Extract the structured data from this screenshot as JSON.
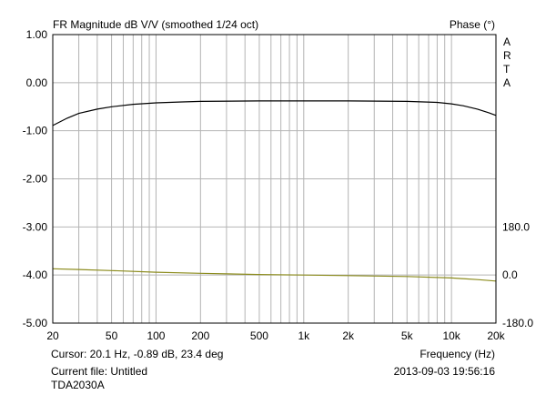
{
  "chart_data": {
    "type": "line",
    "title": "FR Magnitude dB V/V (smoothed 1/24 oct)",
    "right_title": "Phase (°)",
    "brand": "ARTA",
    "xlabel": "Frequency (Hz)",
    "x_scale": "log",
    "xlim": [
      20,
      20000
    ],
    "x_ticks": [
      {
        "value": 20,
        "label": "20"
      },
      {
        "value": 50,
        "label": "50"
      },
      {
        "value": 100,
        "label": "100"
      },
      {
        "value": 200,
        "label": "200"
      },
      {
        "value": 500,
        "label": "500"
      },
      {
        "value": 1000,
        "label": "1k"
      },
      {
        "value": 2000,
        "label": "2k"
      },
      {
        "value": 5000,
        "label": "5k"
      },
      {
        "value": 10000,
        "label": "10k"
      },
      {
        "value": 20000,
        "label": "20k"
      }
    ],
    "ylim": [
      -5,
      1
    ],
    "y_ticks": [
      {
        "value": 1,
        "label": "1.00"
      },
      {
        "value": 0,
        "label": "0.00"
      },
      {
        "value": -1,
        "label": "-1.00"
      },
      {
        "value": -2,
        "label": "-2.00"
      },
      {
        "value": -3,
        "label": "-3.00"
      },
      {
        "value": -4,
        "label": "-4.00"
      },
      {
        "value": -5,
        "label": "-5.00"
      }
    ],
    "y2lim": [
      -180,
      180
    ],
    "y2_ticks": [
      {
        "value": 180,
        "label": "180.0"
      },
      {
        "value": 0,
        "label": "0.0"
      },
      {
        "value": -180,
        "label": "-180.0"
      }
    ],
    "grid": true,
    "colors": {
      "magnitude": "#000000",
      "phase": "#8c8c1e",
      "grid": "#b4b4b4",
      "border": "#000000"
    },
    "series": [
      {
        "axis": "left",
        "x": [
          20,
          25,
          30,
          40,
          50,
          70,
          100,
          150,
          200,
          500,
          1000,
          2000,
          5000,
          8000,
          10000,
          12000,
          15000,
          18000,
          20000
        ],
        "y": [
          -0.89,
          -0.74,
          -0.64,
          -0.55,
          -0.5,
          -0.45,
          -0.42,
          -0.4,
          -0.39,
          -0.38,
          -0.38,
          -0.38,
          -0.39,
          -0.41,
          -0.44,
          -0.48,
          -0.55,
          -0.63,
          -0.68
        ]
      },
      {
        "axis": "right",
        "x": [
          20,
          30,
          50,
          100,
          200,
          500,
          1000,
          2000,
          5000,
          10000,
          15000,
          20000
        ],
        "y": [
          23.4,
          20.5,
          16.5,
          10.5,
          6.5,
          2.0,
          0.0,
          -2.0,
          -5.5,
          -11.0,
          -17.0,
          -22.5
        ]
      }
    ]
  },
  "status": {
    "cursor": "Cursor: 20.1 Hz, -0.89 dB, 23.4 deg",
    "current_file": "Current file: Untitled",
    "label": "TDA2030A",
    "datetime": "2013-09-03  19:56:16"
  }
}
